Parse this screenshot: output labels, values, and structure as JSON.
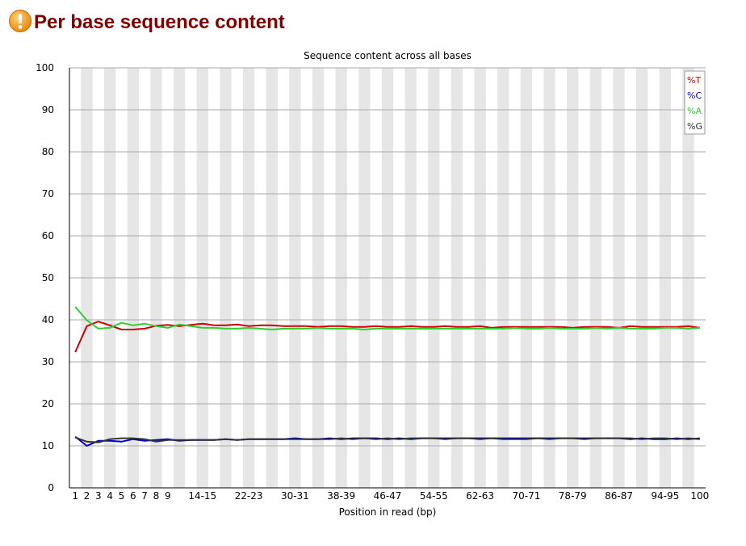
{
  "page": {
    "title": "Per base sequence content",
    "status_icon": "warning-icon",
    "status_color": "#f5a623"
  },
  "chart_data": {
    "type": "line",
    "title": "Sequence content across all bases",
    "xlabel": "Position in read (bp)",
    "ylabel": "",
    "ylim": [
      0,
      100
    ],
    "yticks": [
      0,
      10,
      20,
      30,
      40,
      50,
      60,
      70,
      80,
      90,
      100
    ],
    "grid": true,
    "legend_position": "top-right",
    "categories": [
      "1",
      "2",
      "3",
      "4",
      "5",
      "6",
      "7",
      "8",
      "9",
      "10-11",
      "12-13",
      "14-15",
      "16-17",
      "18-19",
      "20-21",
      "22-23",
      "24-25",
      "26-27",
      "28-29",
      "30-31",
      "32-33",
      "34-35",
      "36-37",
      "38-39",
      "40-41",
      "42-43",
      "44-45",
      "46-47",
      "48-49",
      "50-51",
      "52-53",
      "54-55",
      "56-57",
      "58-59",
      "60-61",
      "62-63",
      "64-65",
      "66-67",
      "68-69",
      "70-71",
      "72-73",
      "74-75",
      "76-77",
      "78-79",
      "80-81",
      "82-83",
      "84-85",
      "86-87",
      "88-89",
      "90-91",
      "92-93",
      "94-95",
      "96-97",
      "98-99",
      "100"
    ],
    "tick_labels": [
      "1",
      "2",
      "3",
      "4",
      "5",
      "6",
      "7",
      "8",
      "9",
      "",
      "",
      "14-15",
      "",
      "",
      "",
      "22-23",
      "",
      "",
      "",
      "30-31",
      "",
      "",
      "",
      "38-39",
      "",
      "",
      "",
      "46-47",
      "",
      "",
      "",
      "54-55",
      "",
      "",
      "",
      "62-63",
      "",
      "",
      "",
      "70-71",
      "",
      "",
      "",
      "78-79",
      "",
      "",
      "",
      "86-87",
      "",
      "",
      "",
      "94-95",
      "",
      "",
      "100"
    ],
    "series": [
      {
        "name": "%T",
        "color": "#cc0000",
        "values": [
          32.3,
          38.5,
          39.6,
          38.7,
          37.7,
          37.7,
          37.9,
          38.6,
          38.8,
          38.5,
          38.8,
          39.1,
          38.7,
          38.7,
          38.9,
          38.5,
          38.7,
          38.7,
          38.5,
          38.5,
          38.5,
          38.3,
          38.5,
          38.5,
          38.3,
          38.3,
          38.5,
          38.3,
          38.3,
          38.5,
          38.3,
          38.3,
          38.5,
          38.3,
          38.3,
          38.5,
          38.1,
          38.3,
          38.3,
          38.3,
          38.3,
          38.3,
          38.3,
          38.1,
          38.3,
          38.3,
          38.3,
          38.1,
          38.5,
          38.3,
          38.3,
          38.3,
          38.3,
          38.5,
          38.1
        ]
      },
      {
        "name": "%C",
        "color": "#0000cc",
        "values": [
          12.2,
          10.0,
          11.2,
          11.2,
          11.0,
          11.6,
          11.2,
          11.4,
          11.6,
          11.2,
          11.4,
          11.4,
          11.4,
          11.6,
          11.4,
          11.6,
          11.6,
          11.6,
          11.6,
          11.8,
          11.6,
          11.6,
          11.8,
          11.6,
          11.8,
          11.8,
          11.8,
          11.6,
          11.8,
          11.6,
          11.8,
          11.8,
          11.8,
          11.8,
          11.8,
          11.8,
          11.8,
          11.8,
          11.8,
          11.8,
          11.8,
          11.8,
          11.8,
          11.8,
          11.8,
          11.8,
          11.8,
          11.8,
          11.6,
          11.8,
          11.6,
          11.6,
          11.8,
          11.6,
          11.8
        ]
      },
      {
        "name": "%A",
        "color": "#33cc33",
        "values": [
          43.1,
          39.9,
          37.9,
          38.1,
          39.3,
          38.7,
          39.1,
          38.5,
          38.1,
          38.9,
          38.5,
          38.1,
          38.1,
          37.9,
          37.9,
          38.1,
          37.9,
          37.7,
          37.9,
          37.9,
          37.9,
          38.1,
          37.9,
          37.9,
          37.9,
          37.7,
          37.9,
          37.9,
          37.9,
          37.9,
          37.9,
          37.9,
          37.9,
          37.9,
          37.9,
          37.9,
          37.9,
          37.9,
          38.1,
          37.9,
          37.9,
          38.1,
          37.9,
          37.9,
          37.9,
          38.1,
          37.9,
          38.1,
          37.9,
          37.9,
          37.9,
          38.1,
          38.1,
          37.9,
          38.1
        ]
      },
      {
        "name": "%G",
        "color": "#333333",
        "values": [
          12.0,
          11.0,
          10.8,
          11.6,
          11.8,
          11.8,
          11.6,
          11.0,
          11.4,
          11.4,
          11.4,
          11.4,
          11.4,
          11.6,
          11.4,
          11.6,
          11.6,
          11.6,
          11.6,
          11.6,
          11.6,
          11.6,
          11.6,
          11.8,
          11.6,
          11.8,
          11.6,
          11.8,
          11.6,
          11.8,
          11.8,
          11.8,
          11.6,
          11.8,
          11.8,
          11.6,
          11.8,
          11.6,
          11.6,
          11.6,
          11.8,
          11.6,
          11.8,
          11.8,
          11.6,
          11.8,
          11.8,
          11.8,
          11.8,
          11.6,
          11.8,
          11.8,
          11.6,
          11.8,
          11.6
        ]
      }
    ]
  }
}
